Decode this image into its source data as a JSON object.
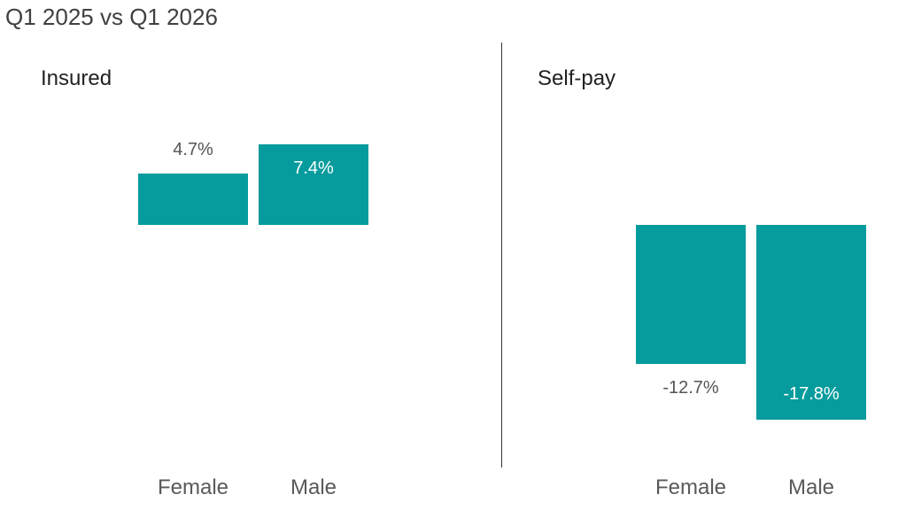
{
  "title": "Q1 2025 vs Q1 2026",
  "accent_color": "#069b9c",
  "chart_data": [
    {
      "type": "bar",
      "title": "Insured",
      "categories": [
        "Female",
        "Male"
      ],
      "values": [
        4.7,
        7.4
      ],
      "labels": [
        "4.7%",
        "7.4%"
      ],
      "unit": "%"
    },
    {
      "type": "bar",
      "title": "Self-pay",
      "categories": [
        "Female",
        "Male"
      ],
      "values": [
        -12.7,
        -17.8
      ],
      "labels": [
        "-12.7%",
        "-17.8%"
      ],
      "unit": "%"
    }
  ]
}
